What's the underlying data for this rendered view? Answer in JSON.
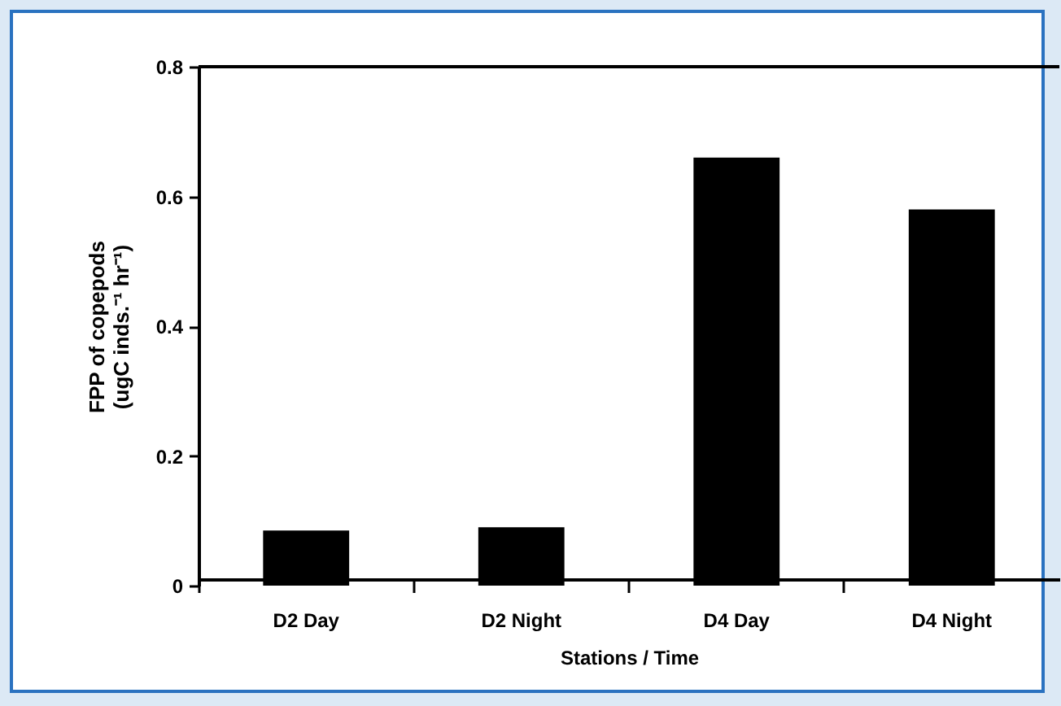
{
  "chart_data": {
    "type": "bar",
    "xlabel": "Stations / Time",
    "ylabel": [
      "FPP of copepods",
      "(ugC inds.⁻¹ hr⁻¹)"
    ],
    "categories": [
      "D2 Day",
      "D2 Night",
      "D4 Day",
      "D4 Night"
    ],
    "values": [
      0.085,
      0.09,
      0.66,
      0.58
    ],
    "color": "#000000",
    "ylim": [
      0,
      0.8
    ],
    "yticks": [
      0,
      0.2,
      0.4,
      0.6,
      0.8
    ],
    "grid": false
  }
}
